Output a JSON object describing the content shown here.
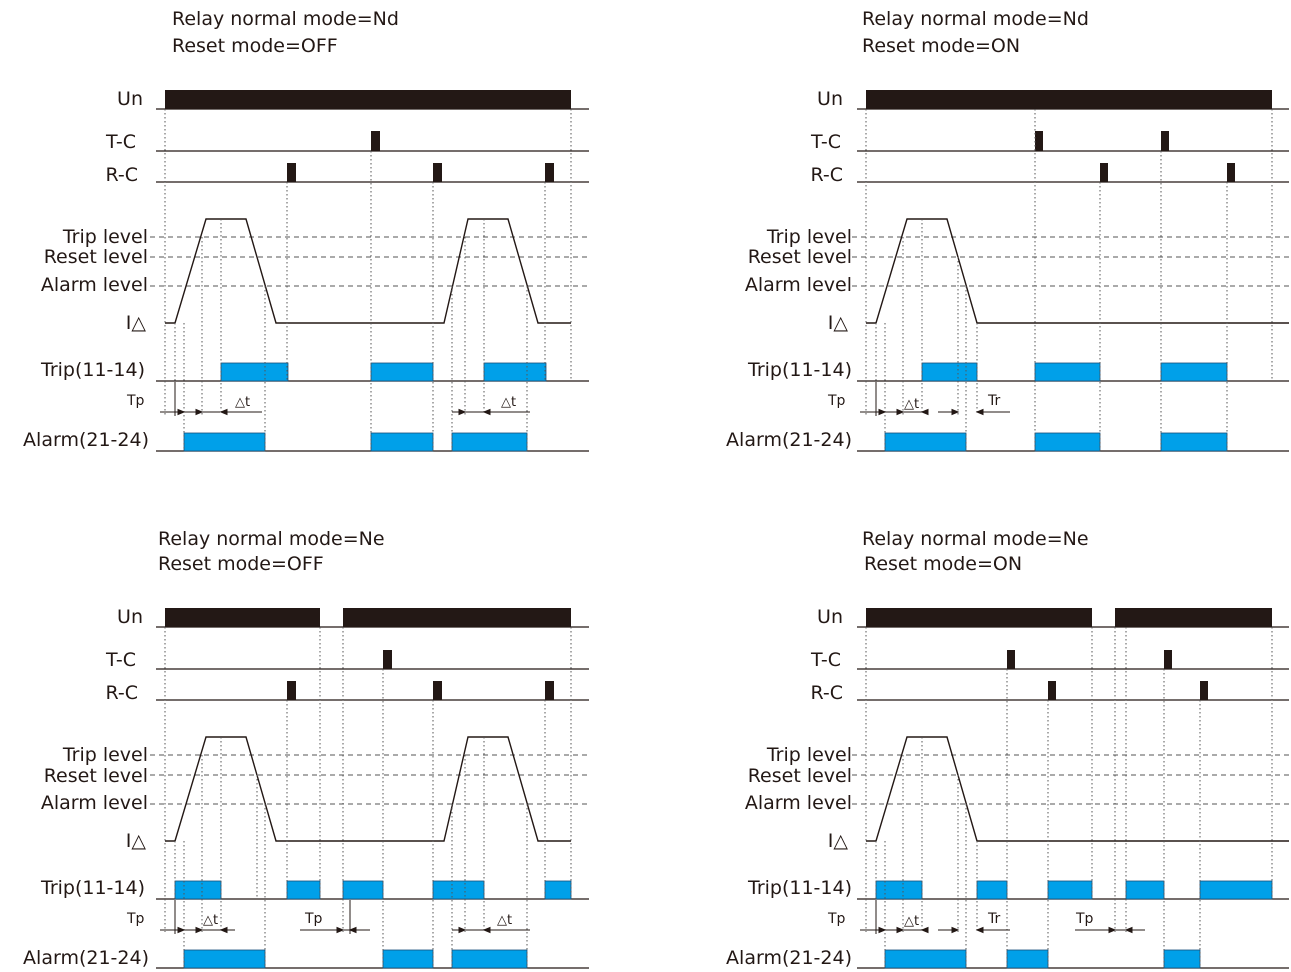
{
  "colors": {
    "ink": "#231815",
    "output_fill": "#00a0e9",
    "output_stroke": "#1a4f7a",
    "guide": "#555555"
  },
  "signal_labels": {
    "un": "Un",
    "tc": "T-C",
    "rc": "R-C",
    "trip_level": "Trip level",
    "reset_level": "Reset level",
    "alarm_level": "Alarm level",
    "current": "I△",
    "trip_output": "Trip(11-14)",
    "alarm_output": "Alarm(21-24)"
  },
  "marks": {
    "tp": "Tp",
    "dt": "△t",
    "tr": "Tr"
  },
  "diagrams": [
    {
      "title_line1": "Relay normal mode=Nd",
      "title_line2": "Reset mode=OFF"
    },
    {
      "title_line1": "Relay normal mode=Nd",
      "title_line2": "Reset mode=ON"
    },
    {
      "title_line1": "Relay normal mode=Ne",
      "title_line2": "Reset mode=OFF"
    },
    {
      "title_line1": "Relay normal mode=Ne",
      "title_line2": "Reset mode=ON"
    }
  ]
}
